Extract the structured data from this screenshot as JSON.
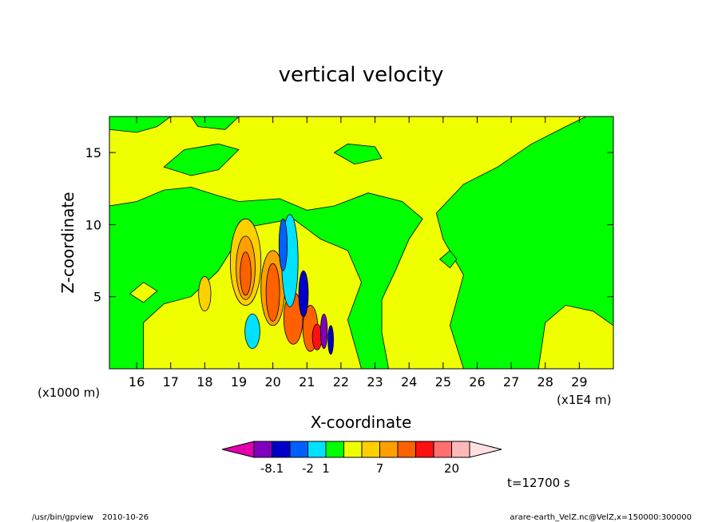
{
  "footer": {
    "left_program": "/usr/bin/gpview",
    "left_date": "2010-10-26",
    "right_source": "arare-earth_VelZ.nc@VelZ,x=150000:300000"
  },
  "time_label": "t=12700 s",
  "chart_data": {
    "type": "heatmap",
    "title": "vertical velocity",
    "xlabel": "X-coordinate",
    "ylabel": "Z-coordinate",
    "x_units_label": "(x1000 m)",
    "x_scale_label": "(x1E4 m)",
    "x_range": [
      15.2,
      30.0
    ],
    "y_range": [
      0.0,
      17.5
    ],
    "x_ticks": [
      16,
      17,
      18,
      19,
      20,
      21,
      22,
      23,
      24,
      25,
      26,
      27,
      28,
      29
    ],
    "y_ticks": [
      5,
      10,
      15
    ],
    "colorbar": {
      "colors": [
        "#e000b0",
        "#8000c0",
        "#0000c8",
        "#0060ff",
        "#00e0ff",
        "#00ff00",
        "#f0ff00",
        "#ffd000",
        "#ffa000",
        "#ff6000",
        "#ff1010",
        "#ff7070",
        "#ffb8b8",
        "#ffe0e0"
      ],
      "tick_labels": [
        {
          "text": "-8.1",
          "index": 2
        },
        {
          "text": "-2",
          "index": 4
        },
        {
          "text": "1",
          "index": 5
        },
        {
          "text": "7",
          "index": 8
        },
        {
          "text": "20",
          "index": 12
        }
      ]
    }
  }
}
